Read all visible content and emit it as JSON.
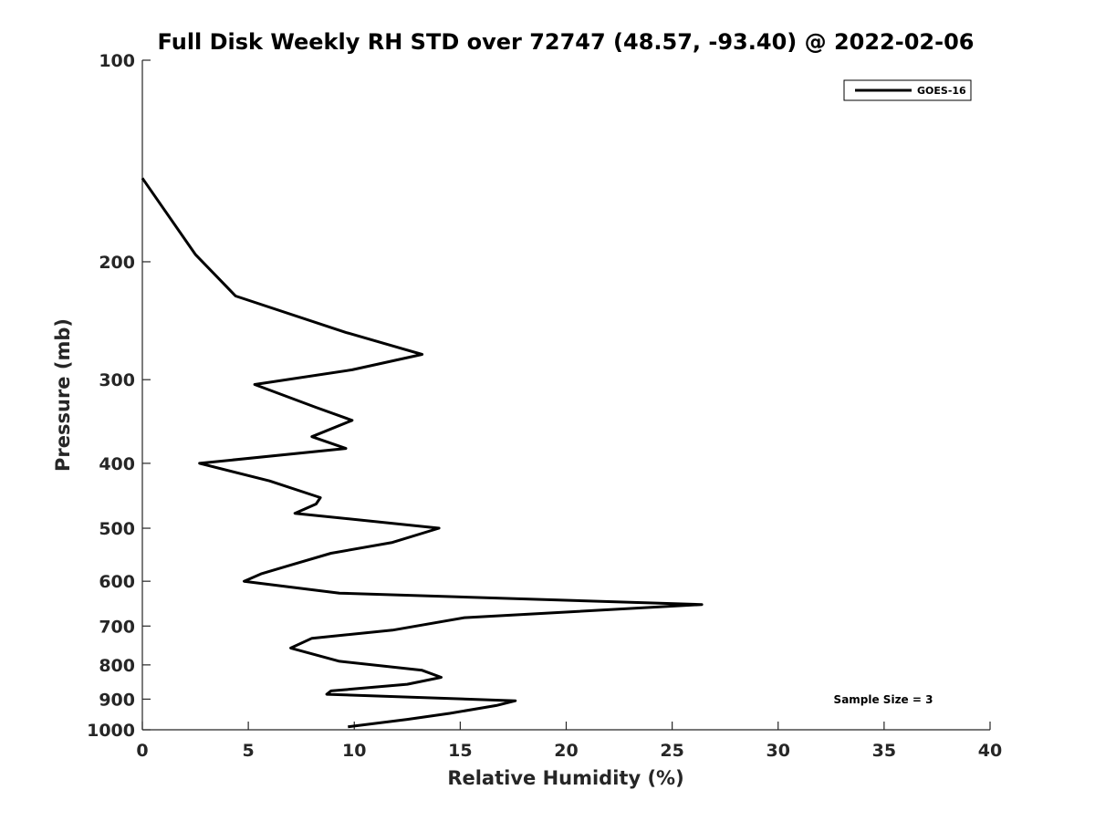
{
  "chart_data": {
    "type": "line",
    "title": "Full Disk Weekly RH STD over 72747 (48.57, -93.40) @ 2022-02-06",
    "xlabel": "Relative Humidity (%)",
    "ylabel": "Pressure (mb)",
    "xlim": [
      0,
      40
    ],
    "ylim": [
      100,
      1000
    ],
    "y_scale": "log",
    "y_inverted": true,
    "x_ticks": [
      0,
      5,
      10,
      15,
      20,
      25,
      30,
      35,
      40
    ],
    "y_ticks": [
      100,
      200,
      300,
      400,
      500,
      600,
      700,
      800,
      900,
      1000
    ],
    "grid": false,
    "legend_position": "top-right",
    "series": [
      {
        "name": "GOES-16",
        "color": "#000000",
        "x": [
          0.0,
          2.5,
          4.4,
          9.6,
          13.2,
          9.9,
          5.3,
          8.2,
          9.9,
          8.0,
          9.6,
          2.7,
          6.0,
          8.4,
          8.2,
          7.2,
          14.0,
          11.8,
          8.9,
          6.8,
          5.6,
          4.8,
          9.3,
          26.4,
          15.2,
          11.8,
          8.0,
          7.0,
          9.3,
          13.2,
          14.1,
          12.5,
          8.9,
          8.7,
          17.6,
          16.7,
          14.5,
          12.5,
          9.7
        ],
        "y": [
          150,
          195,
          225,
          255,
          275,
          290,
          305,
          330,
          345,
          365,
          380,
          400,
          425,
          450,
          460,
          475,
          500,
          525,
          545,
          570,
          585,
          600,
          625,
          650,
          680,
          710,
          730,
          755,
          790,
          815,
          835,
          855,
          875,
          885,
          905,
          920,
          945,
          965,
          990
        ]
      }
    ],
    "annotations": [
      {
        "text": "Sample Size = 3"
      }
    ]
  }
}
